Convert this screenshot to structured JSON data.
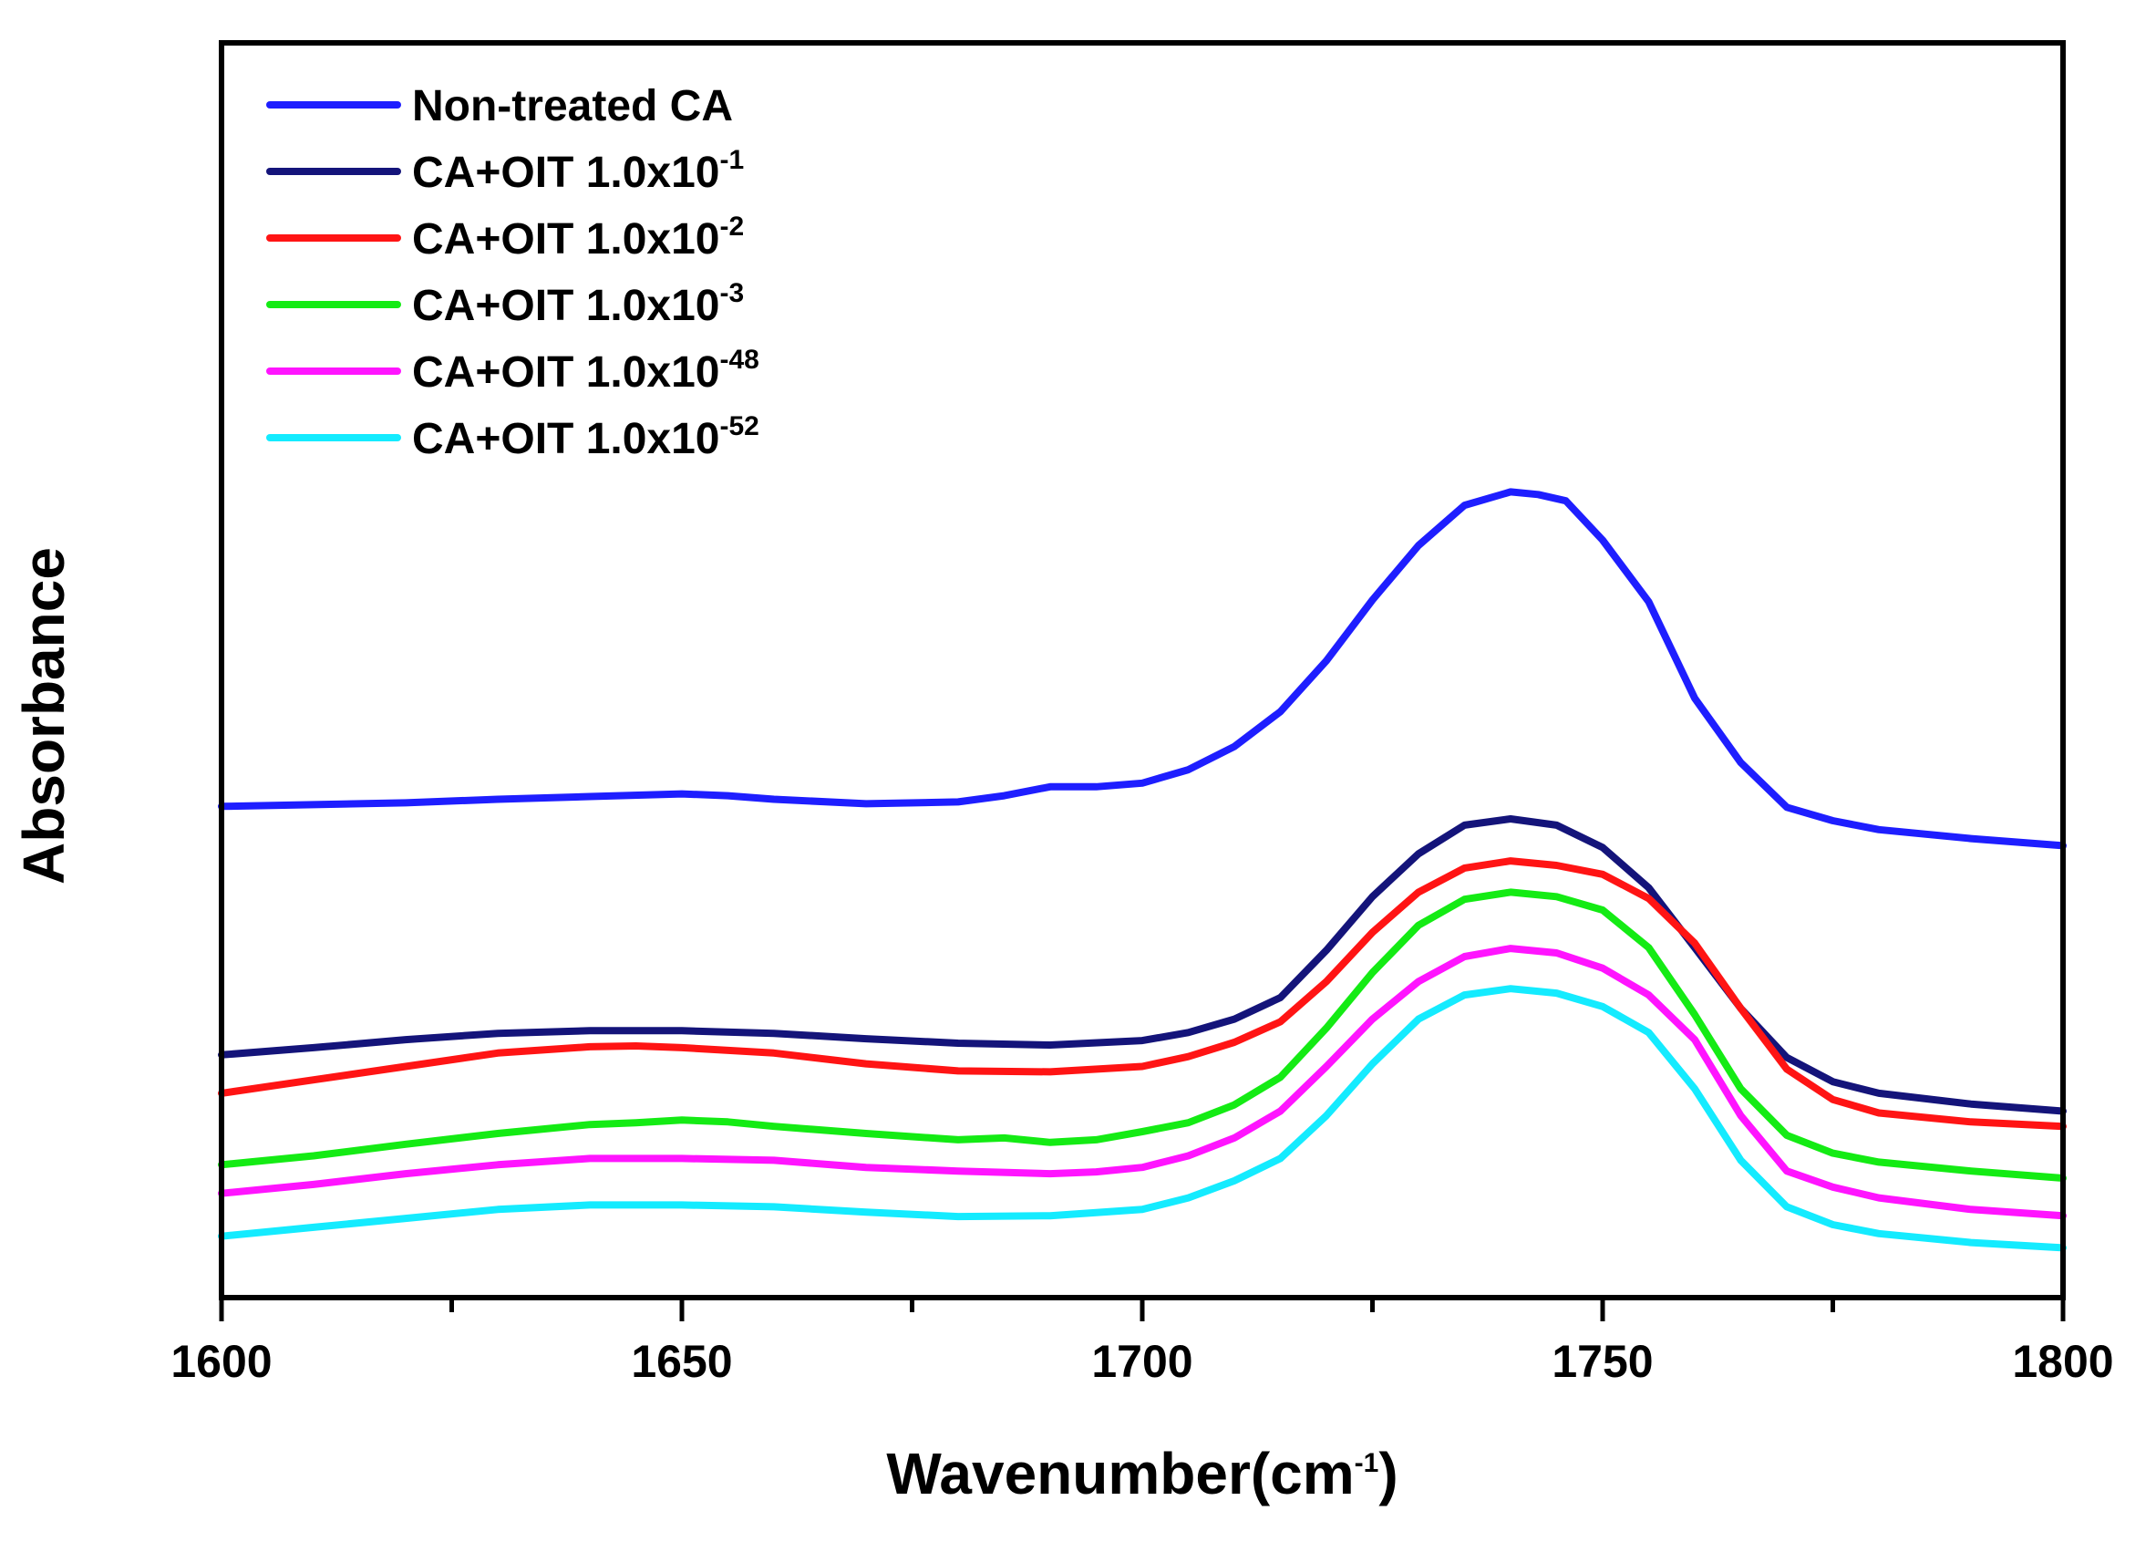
{
  "chart_data": {
    "type": "line",
    "title": "",
    "xlabel": "Wavenumber(cm",
    "xlabel_sup": "-1",
    "xlabel_close": ")",
    "ylabel": "Absorbance",
    "xlim": [
      1600,
      1800
    ],
    "ylim": [
      0,
      1
    ],
    "xticks": [
      1600,
      1650,
      1700,
      1750,
      1800
    ],
    "y_tick_labels_shown": false,
    "grid": false,
    "legend_position": "top-left",
    "series": [
      {
        "name": "Non-treated CA",
        "label_base": "Non-treated CA",
        "label_sup": "",
        "color": "#1e1eff",
        "x": [
          1600,
          1610,
          1620,
          1630,
          1640,
          1650,
          1655,
          1660,
          1670,
          1680,
          1685,
          1690,
          1695,
          1700,
          1705,
          1710,
          1715,
          1720,
          1725,
          1730,
          1735,
          1740,
          1743,
          1746,
          1750,
          1755,
          1760,
          1765,
          1770,
          1775,
          1780,
          1790,
          1800
        ],
        "y": [
          0.516,
          0.518,
          0.52,
          0.524,
          0.527,
          0.53,
          0.528,
          0.524,
          0.519,
          0.521,
          0.528,
          0.538,
          0.538,
          0.542,
          0.557,
          0.583,
          0.622,
          0.679,
          0.747,
          0.808,
          0.853,
          0.868,
          0.865,
          0.858,
          0.814,
          0.745,
          0.637,
          0.565,
          0.515,
          0.5,
          0.49,
          0.48,
          0.472
        ]
      },
      {
        "name": "CA+OIT 1.0x10-1",
        "label_base": "CA+OIT 1.0x10",
        "label_sup": "-1",
        "color": "#14147a",
        "x": [
          1600,
          1610,
          1620,
          1630,
          1640,
          1650,
          1660,
          1670,
          1680,
          1690,
          1700,
          1705,
          1710,
          1715,
          1720,
          1725,
          1730,
          1735,
          1740,
          1745,
          1750,
          1755,
          1760,
          1765,
          1770,
          1775,
          1780,
          1790,
          1800
        ],
        "y": [
          0.238,
          0.246,
          0.255,
          0.262,
          0.265,
          0.265,
          0.262,
          0.256,
          0.251,
          0.249,
          0.254,
          0.263,
          0.278,
          0.302,
          0.355,
          0.415,
          0.463,
          0.495,
          0.502,
          0.495,
          0.47,
          0.425,
          0.358,
          0.29,
          0.235,
          0.208,
          0.195,
          0.183,
          0.175
        ]
      },
      {
        "name": "CA+OIT 1.0x10-2",
        "label_base": "CA+OIT 1.0x10",
        "label_sup": "-2",
        "color": "#ff1414",
        "x": [
          1600,
          1610,
          1620,
          1630,
          1640,
          1645,
          1650,
          1660,
          1670,
          1680,
          1690,
          1700,
          1705,
          1710,
          1715,
          1720,
          1725,
          1730,
          1735,
          1740,
          1745,
          1750,
          1755,
          1760,
          1765,
          1770,
          1775,
          1780,
          1790,
          1800
        ],
        "y": [
          0.195,
          0.21,
          0.225,
          0.24,
          0.247,
          0.248,
          0.246,
          0.24,
          0.228,
          0.22,
          0.219,
          0.225,
          0.236,
          0.252,
          0.275,
          0.32,
          0.375,
          0.42,
          0.447,
          0.455,
          0.45,
          0.44,
          0.413,
          0.363,
          0.29,
          0.222,
          0.188,
          0.173,
          0.163,
          0.158
        ]
      },
      {
        "name": "CA+OIT 1.0x10-3",
        "label_base": "CA+OIT 1.0x10",
        "label_sup": "-3",
        "color": "#14eb14",
        "x": [
          1600,
          1610,
          1620,
          1630,
          1640,
          1645,
          1650,
          1655,
          1660,
          1670,
          1680,
          1685,
          1690,
          1695,
          1700,
          1705,
          1710,
          1715,
          1720,
          1725,
          1730,
          1735,
          1740,
          1745,
          1750,
          1755,
          1760,
          1765,
          1770,
          1775,
          1780,
          1790,
          1800
        ],
        "y": [
          0.115,
          0.125,
          0.138,
          0.15,
          0.16,
          0.162,
          0.165,
          0.163,
          0.158,
          0.15,
          0.143,
          0.145,
          0.14,
          0.143,
          0.152,
          0.162,
          0.182,
          0.213,
          0.268,
          0.33,
          0.383,
          0.412,
          0.42,
          0.415,
          0.4,
          0.358,
          0.283,
          0.2,
          0.148,
          0.128,
          0.118,
          0.108,
          0.1
        ]
      },
      {
        "name": "CA+OIT 1.0x10-48",
        "label_base": "CA+OIT 1.0x10",
        "label_sup": "-48",
        "color": "#ff14ff",
        "x": [
          1600,
          1610,
          1620,
          1630,
          1640,
          1650,
          1660,
          1670,
          1680,
          1690,
          1695,
          1700,
          1705,
          1710,
          1715,
          1720,
          1725,
          1730,
          1735,
          1740,
          1745,
          1750,
          1755,
          1760,
          1765,
          1770,
          1775,
          1780,
          1790,
          1800
        ],
        "y": [
          0.083,
          0.093,
          0.105,
          0.115,
          0.122,
          0.122,
          0.12,
          0.112,
          0.108,
          0.105,
          0.107,
          0.112,
          0.125,
          0.145,
          0.175,
          0.225,
          0.278,
          0.32,
          0.348,
          0.357,
          0.352,
          0.335,
          0.305,
          0.255,
          0.17,
          0.108,
          0.09,
          0.078,
          0.065,
          0.058
        ]
      },
      {
        "name": "CA+OIT 1.0x10-52",
        "label_base": "CA+OIT 1.0x10",
        "label_sup": "-52",
        "color": "#14ebff",
        "x": [
          1600,
          1610,
          1620,
          1630,
          1640,
          1650,
          1660,
          1670,
          1680,
          1690,
          1700,
          1705,
          1710,
          1715,
          1720,
          1725,
          1730,
          1735,
          1740,
          1745,
          1750,
          1755,
          1760,
          1765,
          1770,
          1775,
          1780,
          1790,
          1800
        ],
        "y": [
          0.035,
          0.045,
          0.055,
          0.065,
          0.07,
          0.07,
          0.068,
          0.062,
          0.057,
          0.058,
          0.065,
          0.078,
          0.097,
          0.122,
          0.17,
          0.228,
          0.278,
          0.305,
          0.312,
          0.307,
          0.292,
          0.263,
          0.2,
          0.12,
          0.068,
          0.048,
          0.038,
          0.028,
          0.022
        ]
      }
    ]
  }
}
